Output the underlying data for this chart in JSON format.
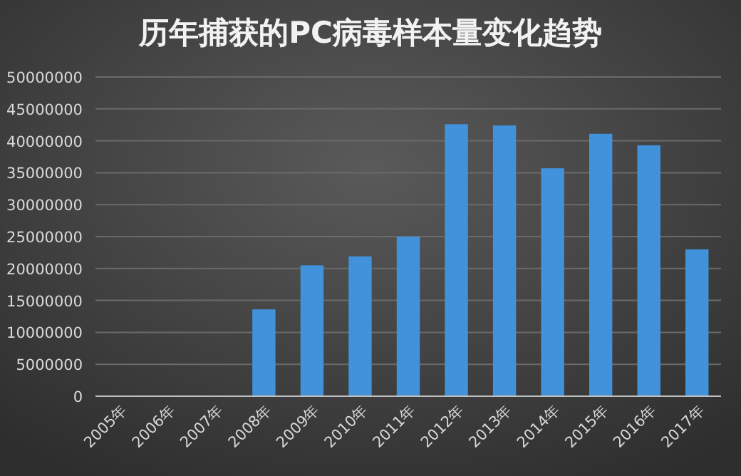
{
  "chart_data": {
    "type": "bar",
    "title": "历年捕获的PC病毒样本量变化趋势",
    "categories": [
      "2005年",
      "2006年",
      "2007年",
      "2008年",
      "2009年",
      "2010年",
      "2011年",
      "2012年",
      "2013年",
      "2014年",
      "2015年",
      "2016年",
      "2017年"
    ],
    "values": [
      0,
      0,
      0,
      13600000,
      20500000,
      21900000,
      25000000,
      42600000,
      42400000,
      35700000,
      41100000,
      39300000,
      23000000
    ],
    "color": "#4292db",
    "ylim": [
      0,
      50000000
    ],
    "yticks": [
      0,
      5000000,
      10000000,
      15000000,
      20000000,
      25000000,
      30000000,
      35000000,
      40000000,
      45000000,
      50000000
    ],
    "grid": "y"
  }
}
